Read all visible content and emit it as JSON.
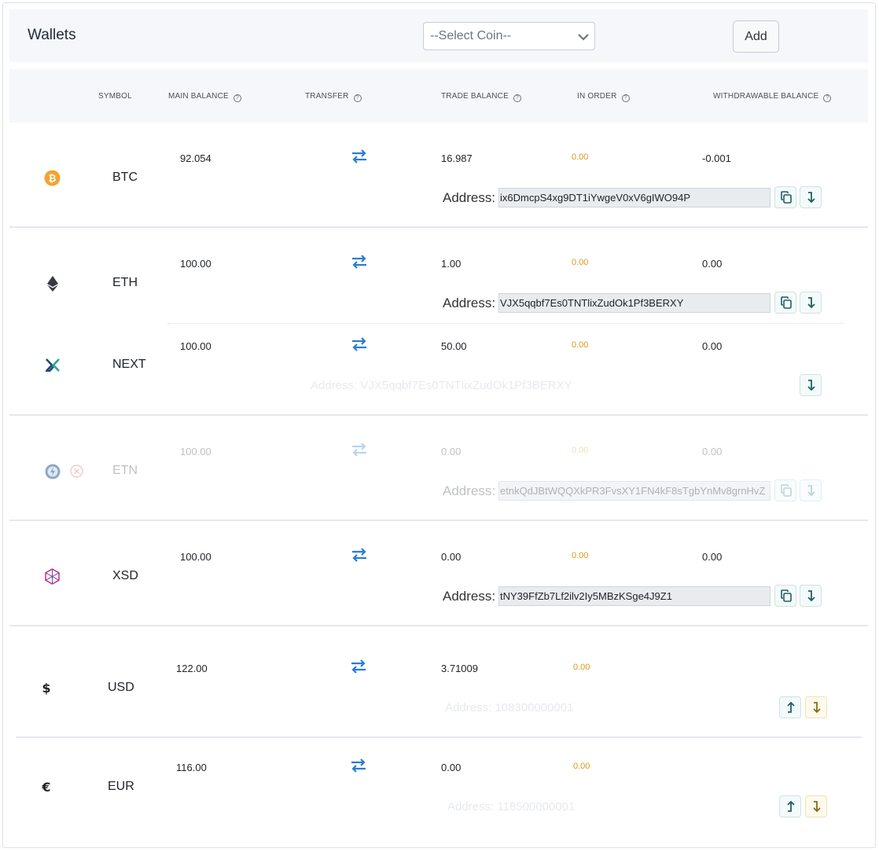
{
  "header": {
    "title": "Wallets",
    "select_placeholder": "--Select Coin--",
    "add_label": "Add"
  },
  "columns": {
    "symbol": "SYMBOL",
    "main_balance": "MAIN BALANCE",
    "transfer": "TRANSFER",
    "trade_balance": "TRADE BALANCE",
    "in_order": "IN ORDER",
    "withdrawable_balance": "WITHDRAWABLE BALANCE"
  },
  "rows": [
    {
      "symbol": "BTC",
      "main": "92.054",
      "trade": "16.987",
      "in_order": "0.00",
      "withdrawable": "-0.001",
      "address_label": "Address:",
      "address": "ix6DmcpS4xg9DT1iYwgeV0xV6gIWO94P",
      "icon": "bitcoin-icon",
      "icon_color": "#f2a434"
    },
    {
      "symbol": "ETH",
      "main": "100.00",
      "trade": "1.00",
      "in_order": "0.00",
      "withdrawable": "0.00",
      "address_label": "Address:",
      "address": "VJX5qqbf7Es0TNTlixZudOk1Pf3BERXY",
      "icon": "ethereum-icon"
    },
    {
      "symbol": "NEXT",
      "main": "100.00",
      "trade": "50.00",
      "in_order": "0.00",
      "withdrawable": "0.00",
      "address_line": "Address: VJX5qqbf7Es0TNTlixZudOk1Pf3BERXY",
      "icon": "next-icon",
      "icon_color": "#1c4e76"
    },
    {
      "symbol": "ETN",
      "main": "100.00",
      "trade": "0.00",
      "in_order": "0.00",
      "withdrawable": "0.00",
      "address_label": "Address:",
      "address": "etnkQdJBtWQQXkPR3FvsXY1FN4kF8sTgbYnMv8grnHvZ",
      "icon": "electroneum-icon",
      "status_icon": "disabled-x-icon",
      "status_color": "#e8a0a0"
    },
    {
      "symbol": "XSD",
      "main": "100.00",
      "trade": "0.00",
      "in_order": "0.00",
      "withdrawable": "0.00",
      "address_label": "Address:",
      "address": "tNY39FfZb7Lf2ilv2Iy5MBzKSge4J9Z1",
      "icon": "xsd-icon",
      "icon_color": "#c2357a"
    },
    {
      "symbol": "USD",
      "main": "122.00",
      "trade": "3.71009",
      "in_order": "0.00",
      "address_line": "Address: 108300000001",
      "icon": "dollar-icon"
    },
    {
      "symbol": "EUR",
      "main": "116.00",
      "trade": "0.00",
      "in_order": "0.00",
      "address_line": "Address: 118500000001",
      "icon": "euro-icon"
    }
  ],
  "colors": {
    "accent": "#2b7bd6",
    "in_order": "#d99a1e",
    "button_teal": "#1f5f63",
    "button_gold": "#8a6a12"
  }
}
